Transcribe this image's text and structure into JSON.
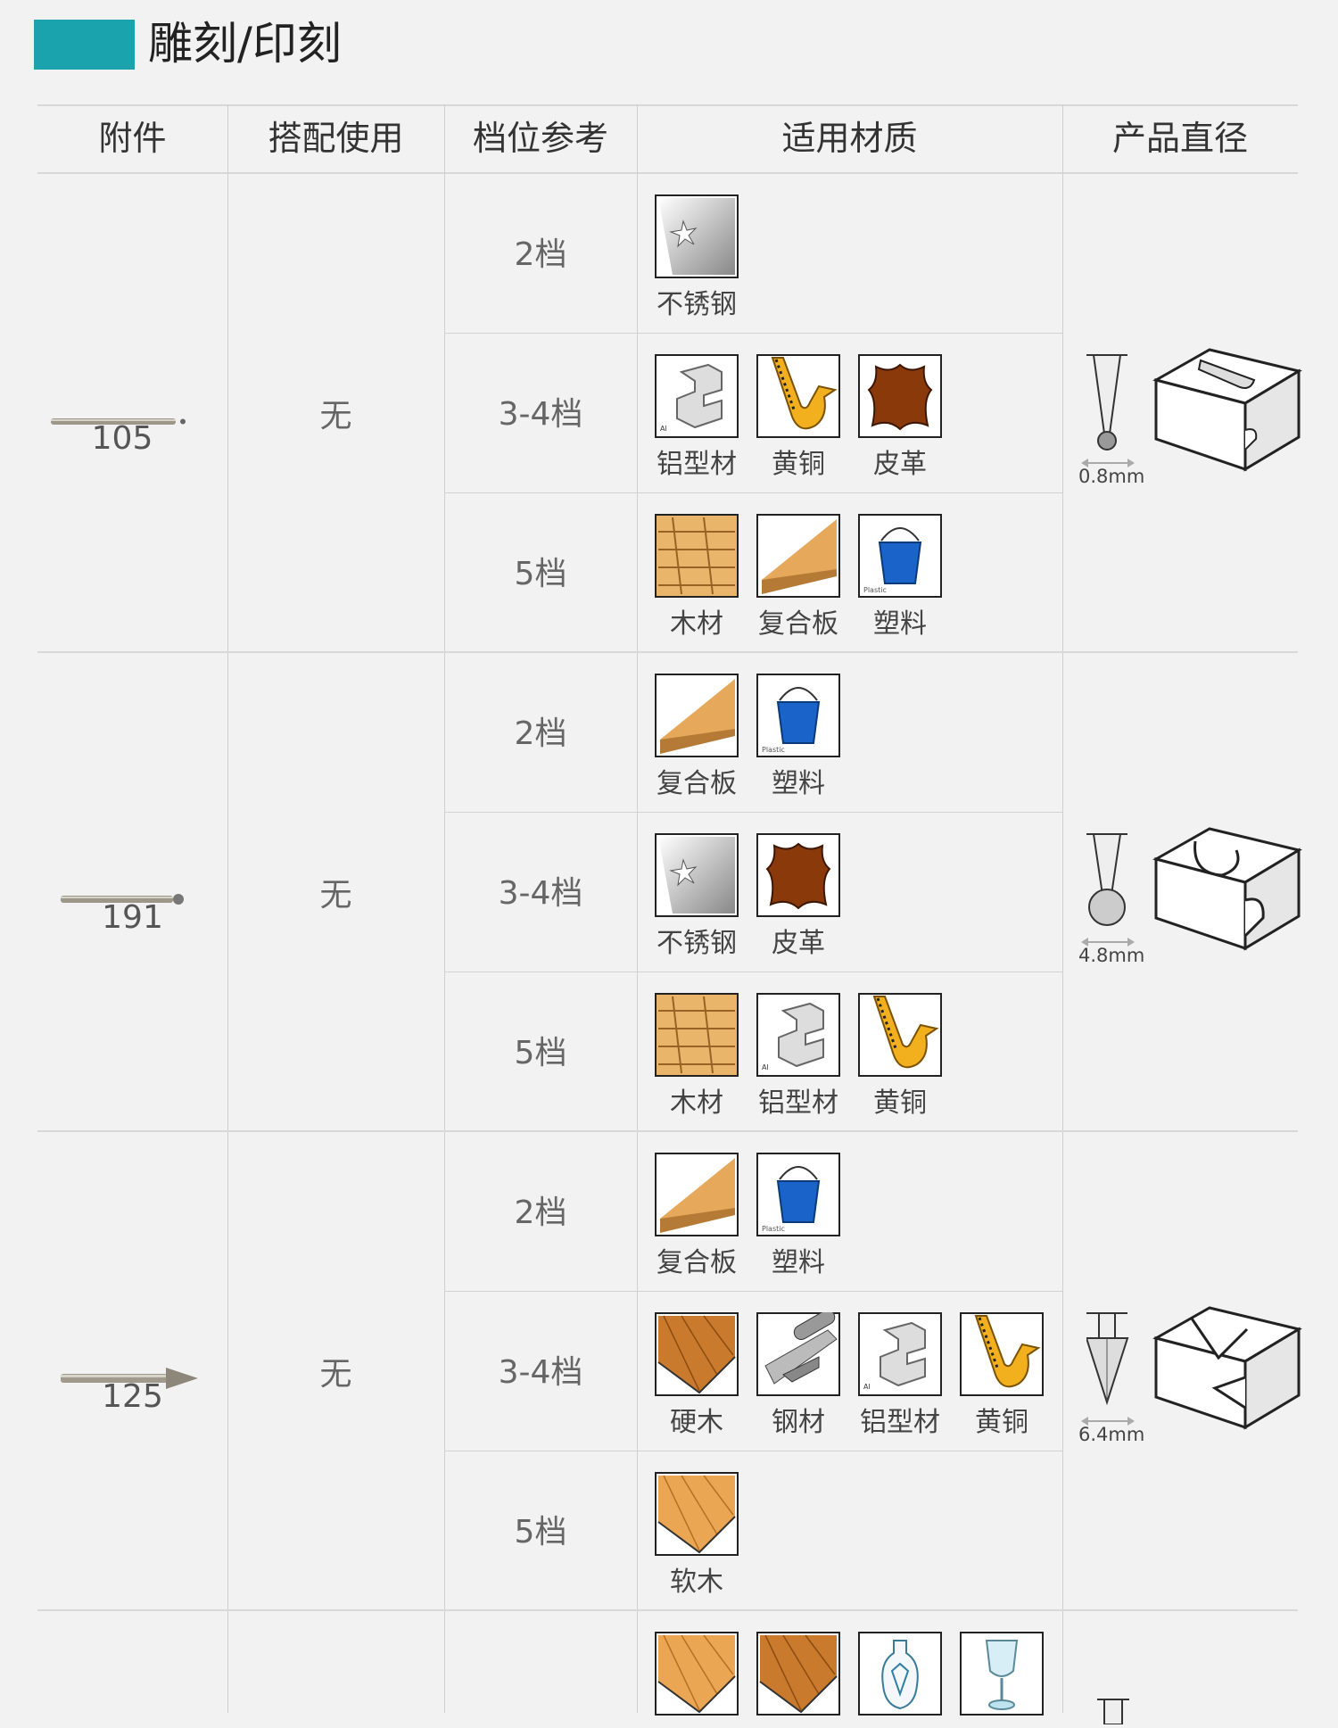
{
  "section_title": "雕刻/印刻",
  "colors": {
    "accent": "#1aa3ad",
    "background": "#f2f2f2"
  },
  "headers": [
    "附件",
    "搭配使用",
    "档位参考",
    "适用材质",
    "产品直径"
  ],
  "groups": [
    {
      "attachment": "105",
      "bit_icon": "thin-rod-bit",
      "pairing": "无",
      "diameter": "0.8mm",
      "diagram": "thin-groove",
      "rows": [
        {
          "level": "2档",
          "materials": [
            {
              "label": "不锈钢",
              "icon": "stainless"
            }
          ]
        },
        {
          "level": "3-4档",
          "materials": [
            {
              "label": "铝型材",
              "icon": "aluminum"
            },
            {
              "label": "黄铜",
              "icon": "brass"
            },
            {
              "label": "皮革",
              "icon": "leather"
            }
          ]
        },
        {
          "level": "5档",
          "materials": [
            {
              "label": "木材",
              "icon": "wood"
            },
            {
              "label": "复合板",
              "icon": "composite"
            },
            {
              "label": "塑料",
              "icon": "plastic"
            }
          ]
        }
      ]
    },
    {
      "attachment": "191",
      "bit_icon": "ball-bit",
      "pairing": "无",
      "diameter": "4.8mm",
      "diagram": "round-groove",
      "rows": [
        {
          "level": "2档",
          "materials": [
            {
              "label": "复合板",
              "icon": "composite"
            },
            {
              "label": "塑料",
              "icon": "plastic"
            }
          ]
        },
        {
          "level": "3-4档",
          "materials": [
            {
              "label": "不锈钢",
              "icon": "stainless"
            },
            {
              "label": "皮革",
              "icon": "leather"
            }
          ]
        },
        {
          "level": "5档",
          "materials": [
            {
              "label": "木材",
              "icon": "wood"
            },
            {
              "label": "铝型材",
              "icon": "aluminum"
            },
            {
              "label": "黄铜",
              "icon": "brass"
            }
          ]
        }
      ]
    },
    {
      "attachment": "125",
      "bit_icon": "cone-bit",
      "pairing": "无",
      "diameter": "6.4mm",
      "diagram": "v-groove",
      "rows": [
        {
          "level": "2档",
          "materials": [
            {
              "label": "复合板",
              "icon": "composite"
            },
            {
              "label": "塑料",
              "icon": "plastic"
            }
          ]
        },
        {
          "level": "3-4档",
          "materials": [
            {
              "label": "硬木",
              "icon": "hardwood"
            },
            {
              "label": "钢材",
              "icon": "steel"
            },
            {
              "label": "铝型材",
              "icon": "aluminum"
            },
            {
              "label": "黄铜",
              "icon": "brass"
            }
          ]
        },
        {
          "level": "5档",
          "materials": [
            {
              "label": "软木",
              "icon": "softwood"
            }
          ]
        }
      ]
    },
    {
      "rows": [
        {
          "materials": [
            {
              "icon": "softwood"
            },
            {
              "icon": "hardwood"
            },
            {
              "icon": "ceramic"
            },
            {
              "icon": "glass"
            }
          ]
        }
      ]
    }
  ]
}
